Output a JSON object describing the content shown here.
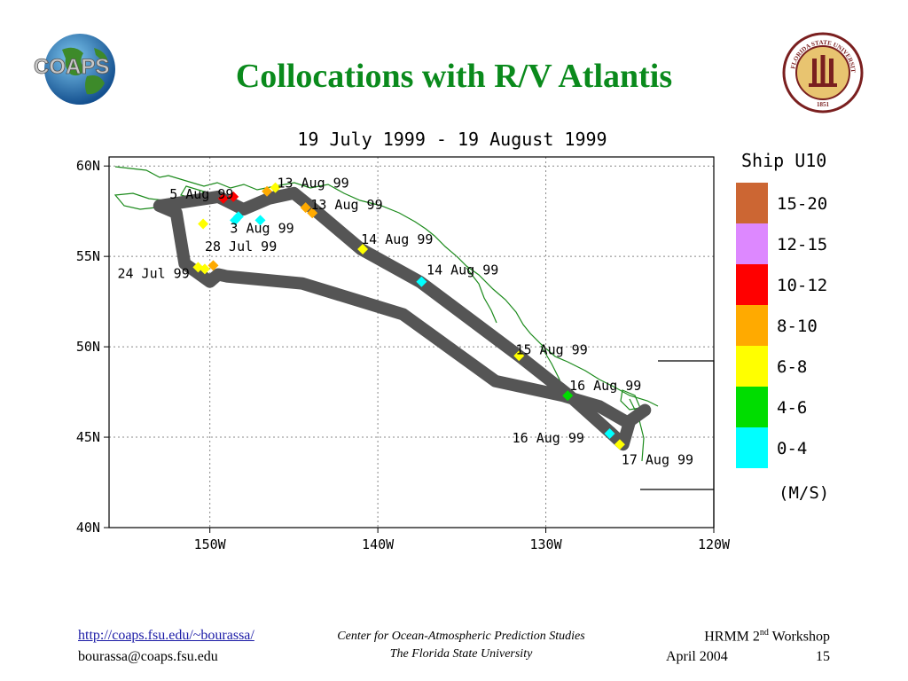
{
  "slide": {
    "title": "Collocations with R/V Atlantis",
    "logo_left_text": "COAPS",
    "logo_right_text": "FLORIDA STATE UNIVERSITY",
    "logo_right_year": "1851"
  },
  "footer": {
    "link": "http://coaps.fsu.edu/~bourassa/",
    "email": "bourassa@coaps.fsu.edu",
    "center_line1": "Center for Ocean-Atmospheric Prediction Studies",
    "center_line2": "The Florida State University",
    "workshop_pre": "HRMM 2",
    "workshop_sup": "nd",
    "workshop_post": " Workshop",
    "date": "April 2004",
    "page": "15"
  },
  "colors": {
    "title": "#0a8a1c",
    "track": "#555555",
    "coast": "#1b8a1b",
    "wind_0_4": "#00ffff",
    "wind_4_6": "#00dd00",
    "wind_6_8": "#ffff00",
    "wind_8_10": "#ffaa00",
    "wind_10_12": "#ff0000",
    "wind_12_15": "#dd88ff",
    "wind_15_20": "#cc6633"
  },
  "chart_data": {
    "type": "scatter",
    "title": "19 July 1999 - 19 August 1999",
    "x_ticks": [
      "150W",
      "140W",
      "130W",
      "120W"
    ],
    "y_ticks": [
      "60N",
      "55N",
      "50N",
      "45N",
      "40N"
    ],
    "xlim": [
      -156,
      -120
    ],
    "ylim": [
      40,
      60.5
    ],
    "grid": true,
    "legend": {
      "title": "Ship U10",
      "units": "(M/S)",
      "placement": "right",
      "items": [
        {
          "label": "15-20",
          "color": "#cc6633"
        },
        {
          "label": "12-15",
          "color": "#dd88ff"
        },
        {
          "label": "10-12",
          "color": "#ff0000"
        },
        {
          "label": "8-10",
          "color": "#ffaa00"
        },
        {
          "label": "6-8",
          "color": "#ffff00"
        },
        {
          "label": "4-6",
          "color": "#00dd00"
        },
        {
          "label": "0-4",
          "color": "#00ffff"
        }
      ]
    },
    "track": [
      [
        -125.3,
        45.9
      ],
      [
        -126.8,
        46.7
      ],
      [
        -129.0,
        47.3
      ],
      [
        -133.0,
        48.1
      ],
      [
        -138.5,
        51.8
      ],
      [
        -144.5,
        53.5
      ],
      [
        -149.0,
        53.9
      ],
      [
        -149.5,
        54.0
      ],
      [
        -150.0,
        53.6
      ],
      [
        -151.5,
        54.6
      ],
      [
        -152.0,
        57.4
      ],
      [
        -153.0,
        57.8
      ],
      [
        -149.5,
        58.3
      ],
      [
        -148.0,
        57.6
      ],
      [
        -146.5,
        58.2
      ],
      [
        -145.0,
        58.5
      ],
      [
        -143.8,
        57.6
      ],
      [
        -141.0,
        55.4
      ],
      [
        -137.5,
        53.6
      ],
      [
        -131.6,
        49.5
      ],
      [
        -128.6,
        47.3
      ],
      [
        -126.2,
        45.3
      ],
      [
        -125.4,
        44.6
      ],
      [
        -125.0,
        45.9
      ],
      [
        -124.1,
        46.5
      ]
    ],
    "labels": [
      {
        "text": "5 Aug 99",
        "lon": -152.4,
        "lat": 58.2
      },
      {
        "text": "13 Aug 99",
        "lon": -146.0,
        "lat": 58.8
      },
      {
        "text": "13 Aug 99",
        "lon": -144.0,
        "lat": 57.6
      },
      {
        "text": "3 Aug 99",
        "lon": -148.8,
        "lat": 56.3
      },
      {
        "text": "14 Aug 99",
        "lon": -141.0,
        "lat": 55.7
      },
      {
        "text": "28 Jul 99",
        "lon": -150.3,
        "lat": 55.3
      },
      {
        "text": "24 Jul 99",
        "lon": -155.5,
        "lat": 53.8
      },
      {
        "text": "14 Aug 99",
        "lon": -137.1,
        "lat": 54.0
      },
      {
        "text": "15 Aug 99",
        "lon": -131.8,
        "lat": 49.6
      },
      {
        "text": "16 Aug 99",
        "lon": -128.6,
        "lat": 47.6
      },
      {
        "text": "16 Aug 99",
        "lon": -132.0,
        "lat": 44.7
      },
      {
        "text": "17 Aug 99",
        "lon": -125.5,
        "lat": 43.5
      }
    ],
    "points": [
      {
        "lon": -149.2,
        "lat": 58.2,
        "range": "10-12"
      },
      {
        "lon": -148.6,
        "lat": 58.3,
        "range": "10-12"
      },
      {
        "lon": -146.6,
        "lat": 58.6,
        "range": "8-10"
      },
      {
        "lon": -146.1,
        "lat": 58.8,
        "range": "6-8"
      },
      {
        "lon": -148.3,
        "lat": 57.2,
        "range": "0-4"
      },
      {
        "lon": -148.5,
        "lat": 57.0,
        "range": "0-4"
      },
      {
        "lon": -147.0,
        "lat": 57.0,
        "range": "0-4"
      },
      {
        "lon": -150.4,
        "lat": 56.8,
        "range": "6-8"
      },
      {
        "lon": -144.3,
        "lat": 57.7,
        "range": "8-10"
      },
      {
        "lon": -143.9,
        "lat": 57.4,
        "range": "8-10"
      },
      {
        "lon": -140.9,
        "lat": 55.4,
        "range": "6-8"
      },
      {
        "lon": -150.7,
        "lat": 54.4,
        "range": "6-8"
      },
      {
        "lon": -150.3,
        "lat": 54.3,
        "range": "6-8"
      },
      {
        "lon": -149.8,
        "lat": 54.5,
        "range": "8-10"
      },
      {
        "lon": -137.4,
        "lat": 53.6,
        "range": "0-4"
      },
      {
        "lon": -131.6,
        "lat": 49.5,
        "range": "6-8"
      },
      {
        "lon": -128.7,
        "lat": 47.3,
        "range": "4-6"
      },
      {
        "lon": -126.2,
        "lat": 45.2,
        "range": "0-4"
      },
      {
        "lon": -125.6,
        "lat": 44.6,
        "range": "6-8"
      }
    ]
  }
}
